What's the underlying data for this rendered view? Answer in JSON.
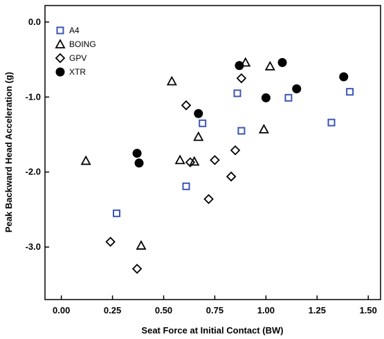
{
  "chart_data": {
    "type": "scatter",
    "title": "",
    "xlabel": "Seat Force at Initial Contact (BW)",
    "ylabel": "Peak Backward Head Acceleration (g)",
    "xlim": [
      -0.08,
      1.56
    ],
    "ylim": [
      -3.7,
      0.22
    ],
    "x_ticks": [
      0.0,
      0.25,
      0.5,
      0.75,
      1.0,
      1.25,
      1.5
    ],
    "x_tick_labels": [
      "0.00",
      "0.25",
      "0.50",
      "0.75",
      "1.00",
      "1.25",
      "1.50"
    ],
    "y_ticks": [
      0.0,
      -1.0,
      -2.0,
      -3.0
    ],
    "y_tick_labels": [
      "0.0",
      "-1.0",
      "-2.0",
      "-3.0"
    ],
    "grid": false,
    "legend_position": "top-left",
    "series": [
      {
        "name": "A4",
        "marker": "square",
        "color": "#3a55b4",
        "points": [
          {
            "x": 0.27,
            "y": -2.55
          },
          {
            "x": 0.61,
            "y": -2.19
          },
          {
            "x": 0.69,
            "y": -1.35
          },
          {
            "x": 0.86,
            "y": -0.95
          },
          {
            "x": 0.88,
            "y": -1.45
          },
          {
            "x": 1.11,
            "y": -1.01
          },
          {
            "x": 1.32,
            "y": -1.34
          },
          {
            "x": 1.41,
            "y": -0.93
          }
        ]
      },
      {
        "name": "BOING",
        "marker": "triangle",
        "color": "#000000",
        "points": [
          {
            "x": 0.12,
            "y": -1.85
          },
          {
            "x": 0.39,
            "y": -2.98
          },
          {
            "x": 0.54,
            "y": -0.79
          },
          {
            "x": 0.58,
            "y": -1.84
          },
          {
            "x": 0.65,
            "y": -1.86
          },
          {
            "x": 0.67,
            "y": -1.53
          },
          {
            "x": 0.9,
            "y": -0.54
          },
          {
            "x": 0.99,
            "y": -1.43
          },
          {
            "x": 1.02,
            "y": -0.59
          }
        ]
      },
      {
        "name": "GPV",
        "marker": "diamond",
        "color": "#000000",
        "points": [
          {
            "x": 0.24,
            "y": -2.93
          },
          {
            "x": 0.37,
            "y": -3.29
          },
          {
            "x": 0.61,
            "y": -1.11
          },
          {
            "x": 0.63,
            "y": -1.87
          },
          {
            "x": 0.72,
            "y": -2.36
          },
          {
            "x": 0.75,
            "y": -1.84
          },
          {
            "x": 0.83,
            "y": -2.06
          },
          {
            "x": 0.85,
            "y": -1.71
          },
          {
            "x": 0.88,
            "y": -0.75
          }
        ]
      },
      {
        "name": "XTR",
        "marker": "circle",
        "color": "#000000",
        "points": [
          {
            "x": 0.37,
            "y": -1.75
          },
          {
            "x": 0.38,
            "y": -1.88
          },
          {
            "x": 0.67,
            "y": -1.22
          },
          {
            "x": 0.87,
            "y": -0.58
          },
          {
            "x": 1.0,
            "y": -1.01
          },
          {
            "x": 1.08,
            "y": -0.54
          },
          {
            "x": 1.15,
            "y": -0.89
          },
          {
            "x": 1.38,
            "y": -0.73
          }
        ]
      }
    ]
  }
}
